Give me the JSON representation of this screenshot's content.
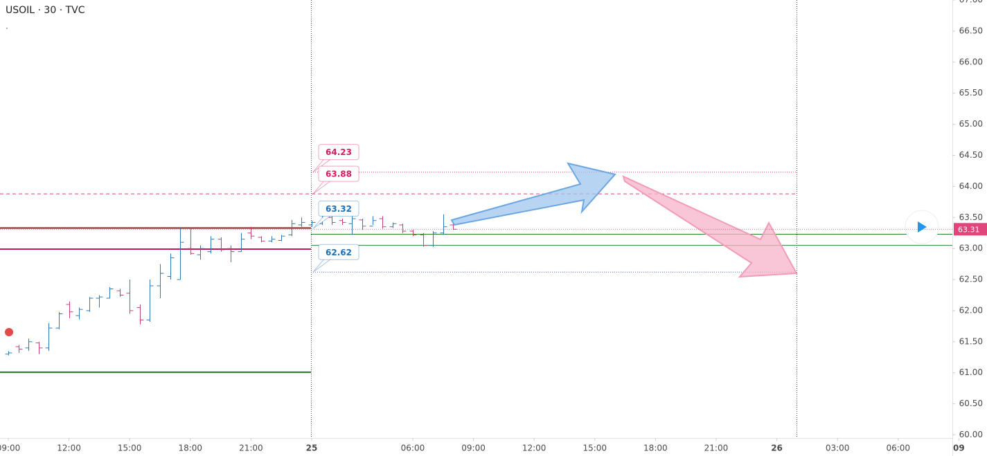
{
  "chart_data": {
    "type": "ohlc",
    "title": "USOIL · 30 · TVC",
    "subtitle": ".",
    "up_color": "#2e78b7",
    "down_color": "#c2407a",
    "open": [
      61.3,
      61.42,
      61.4,
      61.48,
      61.4,
      61.72,
      62.1,
      61.92,
      62.0,
      62.2,
      62.2,
      62.32,
      62.28,
      62.05,
      61.85,
      62.4,
      62.55,
      62.5,
      63.0,
      62.9,
      62.95,
      63.15,
      63.0,
      62.95,
      63.25,
      63.18,
      63.12,
      63.13,
      63.22,
      63.38,
      63.38,
      63.4,
      63.5,
      63.45,
      63.4,
      63.46,
      63.36,
      63.48,
      63.35,
      63.38,
      63.28,
      63.22,
      63.05,
      63.25,
      63.38
    ],
    "high": [
      61.35,
      61.45,
      61.55,
      61.5,
      61.8,
      61.98,
      62.15,
      62.05,
      62.22,
      62.25,
      62.38,
      62.35,
      62.5,
      62.1,
      62.5,
      62.75,
      62.92,
      63.33,
      63.33,
      63.05,
      63.2,
      63.18,
      63.05,
      63.25,
      63.35,
      63.2,
      63.2,
      63.22,
      63.46,
      63.5,
      63.45,
      63.55,
      63.55,
      63.48,
      63.55,
      63.48,
      63.52,
      63.52,
      63.42,
      63.4,
      63.3,
      63.25,
      63.28,
      63.55,
      63.42
    ],
    "low": [
      61.28,
      61.32,
      61.35,
      61.3,
      61.35,
      61.7,
      61.88,
      61.86,
      61.98,
      62.05,
      62.2,
      62.22,
      61.95,
      61.78,
      61.82,
      62.2,
      62.5,
      62.5,
      62.9,
      62.82,
      62.92,
      62.95,
      62.78,
      62.95,
      63.15,
      63.1,
      63.1,
      63.12,
      63.2,
      63.35,
      63.35,
      63.38,
      63.38,
      63.38,
      63.22,
      63.3,
      63.38,
      63.32,
      63.33,
      63.25,
      63.2,
      63.03,
      63.03,
      63.22,
      63.3
    ],
    "close": [
      61.32,
      61.38,
      61.5,
      61.4,
      61.72,
      61.95,
      61.98,
      62.02,
      62.2,
      62.22,
      62.35,
      62.25,
      62.0,
      61.85,
      62.4,
      62.6,
      62.85,
      63.1,
      62.92,
      63.0,
      63.15,
      62.98,
      62.95,
      63.15,
      63.2,
      63.12,
      63.15,
      63.2,
      63.4,
      63.42,
      63.42,
      63.5,
      63.42,
      63.42,
      63.48,
      63.36,
      63.45,
      63.35,
      63.4,
      63.28,
      63.22,
      63.05,
      63.25,
      63.35,
      63.31
    ],
    "last": 63.31,
    "ylim": [
      59.95,
      67.0
    ],
    "yticks": [
      {
        "value": 60,
        "label": "60.00"
      },
      {
        "value": 60.5,
        "label": "60.50"
      },
      {
        "value": 61,
        "label": "61.00"
      },
      {
        "value": 61.5,
        "label": "61.50"
      },
      {
        "value": 62,
        "label": "62.00"
      },
      {
        "value": 62.5,
        "label": "62.50"
      },
      {
        "value": 63,
        "label": "63.00"
      },
      {
        "value": 63.5,
        "label": "63.50"
      },
      {
        "value": 64,
        "label": "64.00"
      },
      {
        "value": 64.5,
        "label": "64.50"
      },
      {
        "value": 65,
        "label": "65.00"
      },
      {
        "value": 65.5,
        "label": "65.50"
      },
      {
        "value": 66,
        "label": "66.00"
      },
      {
        "value": 66.5,
        "label": "66.50"
      },
      {
        "value": 67,
        "label": "67.00"
      }
    ],
    "xlim": [
      -0.82,
      93.36
    ],
    "xticks": [
      {
        "value": 0,
        "label": "09:00"
      },
      {
        "value": 6,
        "label": "12:00"
      },
      {
        "value": 12,
        "label": "15:00"
      },
      {
        "value": 18,
        "label": "18:00"
      },
      {
        "value": 24,
        "label": "21:00"
      },
      {
        "value": 30,
        "label": "25"
      },
      {
        "value": 40,
        "label": "06:00"
      },
      {
        "value": 46,
        "label": "09:00"
      },
      {
        "value": 52,
        "label": "12:00"
      },
      {
        "value": 58,
        "label": "15:00"
      },
      {
        "value": 64,
        "label": "18:00"
      },
      {
        "value": 70,
        "label": "21:00"
      },
      {
        "value": 76,
        "label": "26"
      },
      {
        "value": 82,
        "label": "03:00"
      },
      {
        "value": 88,
        "label": "06:00"
      },
      {
        "value": 94,
        "label": "09"
      }
    ],
    "lines": [
      {
        "value": 63.88,
        "color": "#e0457b",
        "style": "dashed"
      },
      {
        "value": 64.23,
        "color": "#e0457b",
        "style": "dotted"
      },
      {
        "value": 62.62,
        "color": "#5c6bc0",
        "style": "dotted"
      },
      {
        "value": 63.33,
        "color": "#8b1a1a",
        "style": "solid"
      },
      {
        "value": 62.99,
        "color": "#c2185b",
        "style": "solid"
      },
      {
        "value": 61.01,
        "color": "#1b7a1b",
        "style": "solid"
      },
      {
        "value": 63.23,
        "color": "#2e7d32",
        "style": "thin"
      },
      {
        "value": 63.05,
        "color": "#2e7d32",
        "style": "thin"
      }
    ],
    "callouts": [
      {
        "value": 64.23,
        "color": "#d81b60"
      },
      {
        "value": 63.88,
        "color": "#d81b60"
      },
      {
        "value": 63.32,
        "color": "#1e6fb5"
      },
      {
        "value": 62.62,
        "color": "#1e6fb5"
      }
    ]
  }
}
